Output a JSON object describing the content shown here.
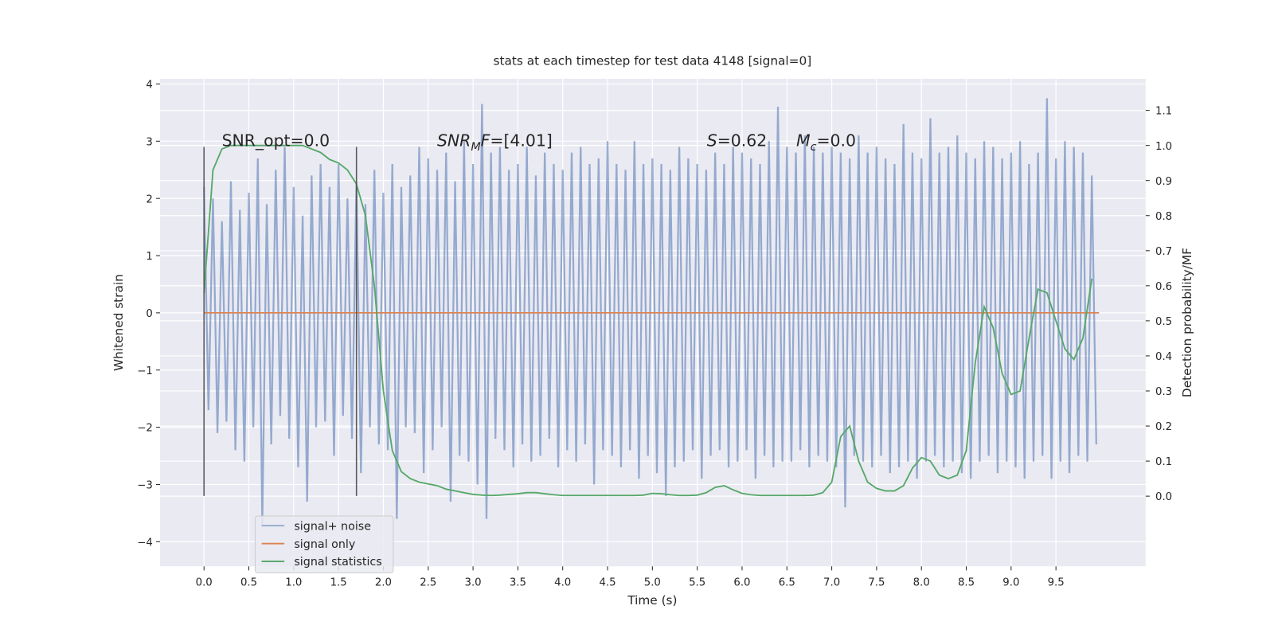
{
  "chart_data": {
    "type": "line",
    "title": "stats at each timestep for test data 4148 [signal=0]",
    "x_label": "Time (s)",
    "y_label": "Whitened strain",
    "y2_label": "Detection probability/MF",
    "xlim": [
      -0.49,
      10.5
    ],
    "ylim": [
      -4.43,
      4.09
    ],
    "y2lim": [
      -0.2,
      1.19
    ],
    "xticks": [
      {
        "value": 0,
        "label": "0.0"
      },
      {
        "value": 0.5,
        "label": "0.5"
      },
      {
        "value": 1,
        "label": "1.0"
      },
      {
        "value": 1.5,
        "label": "1.5"
      },
      {
        "value": 2,
        "label": "2.0"
      },
      {
        "value": 2.5,
        "label": "2.5"
      },
      {
        "value": 3,
        "label": "3.0"
      },
      {
        "value": 3.5,
        "label": "3.5"
      },
      {
        "value": 4,
        "label": "4.0"
      },
      {
        "value": 4.5,
        "label": "4.5"
      },
      {
        "value": 5,
        "label": "5.0"
      },
      {
        "value": 5.5,
        "label": "5.5"
      },
      {
        "value": 6,
        "label": "6.0"
      },
      {
        "value": 6.5,
        "label": "6.5"
      },
      {
        "value": 7,
        "label": "7.0"
      },
      {
        "value": 7.5,
        "label": "7.5"
      },
      {
        "value": 8,
        "label": "8.0"
      },
      {
        "value": 8.5,
        "label": "8.5"
      },
      {
        "value": 9,
        "label": "9.0"
      },
      {
        "value": 9.5,
        "label": "9.5"
      }
    ],
    "yticks": [
      {
        "value": -4,
        "label": "−4"
      },
      {
        "value": -3,
        "label": "−3"
      },
      {
        "value": -2,
        "label": "−2"
      },
      {
        "value": -1,
        "label": "−1"
      },
      0,
      1,
      2,
      3,
      4
    ],
    "y2ticks": [
      {
        "value": 0,
        "label": "0.0"
      },
      {
        "value": 0.1,
        "label": "0.1"
      },
      {
        "value": 0.2,
        "label": "0.2"
      },
      {
        "value": 0.3,
        "label": "0.3"
      },
      {
        "value": 0.4,
        "label": "0.4"
      },
      {
        "value": 0.5,
        "label": "0.5"
      },
      {
        "value": 0.6,
        "label": "0.6"
      },
      {
        "value": 0.7,
        "label": "0.7"
      },
      {
        "value": 0.8,
        "label": "0.8"
      },
      {
        "value": 0.9,
        "label": "0.9"
      },
      {
        "value": 1,
        "label": "1.0"
      },
      {
        "value": 1.1,
        "label": "1.1"
      }
    ],
    "grid": true,
    "legend": "lower left",
    "series": [
      {
        "name": "signal+ noise",
        "color": "#4c72b0",
        "x": [
          0,
          0.05,
          0.1,
          0.15,
          0.2,
          0.25,
          0.3,
          0.35,
          0.4,
          0.45,
          0.5,
          0.55,
          0.6,
          0.65,
          0.7,
          0.75,
          0.8,
          0.85,
          0.9,
          0.95,
          1,
          1.05,
          1.1,
          1.15,
          1.2,
          1.25,
          1.3,
          1.35,
          1.4,
          1.45,
          1.5,
          1.55,
          1.6,
          1.65,
          1.7,
          1.75,
          1.8,
          1.85,
          1.9,
          1.95,
          2,
          2.05,
          2.1,
          2.15,
          2.2,
          2.25,
          2.3,
          2.35,
          2.4,
          2.45,
          2.5,
          2.55,
          2.6,
          2.65,
          2.7,
          2.75,
          2.8,
          2.85,
          2.9,
          2.95,
          3,
          3.05,
          3.1,
          3.15,
          3.2,
          3.25,
          3.3,
          3.35,
          3.4,
          3.45,
          3.5,
          3.55,
          3.6,
          3.65,
          3.7,
          3.75,
          3.8,
          3.85,
          3.9,
          3.95,
          4,
          4.05,
          4.1,
          4.15,
          4.2,
          4.25,
          4.3,
          4.35,
          4.4,
          4.45,
          4.5,
          4.55,
          4.6,
          4.65,
          4.7,
          4.75,
          4.8,
          4.85,
          4.9,
          4.95,
          5,
          5.05,
          5.1,
          5.15,
          5.2,
          5.25,
          5.3,
          5.35,
          5.4,
          5.45,
          5.5,
          5.55,
          5.6,
          5.65,
          5.7,
          5.75,
          5.8,
          5.85,
          5.9,
          5.95,
          6,
          6.05,
          6.1,
          6.15,
          6.2,
          6.25,
          6.3,
          6.35,
          6.4,
          6.45,
          6.5,
          6.55,
          6.6,
          6.65,
          6.7,
          6.75,
          6.8,
          6.85,
          6.9,
          6.95,
          7,
          7.05,
          7.1,
          7.15,
          7.2,
          7.25,
          7.3,
          7.35,
          7.4,
          7.45,
          7.5,
          7.55,
          7.6,
          7.65,
          7.7,
          7.75,
          7.8,
          7.85,
          7.9,
          7.95,
          8,
          8.05,
          8.1,
          8.15,
          8.2,
          8.25,
          8.3,
          8.35,
          8.4,
          8.45,
          8.5,
          8.55,
          8.6,
          8.65,
          8.7,
          8.75,
          8.8,
          8.85,
          8.9,
          8.95,
          9,
          9.05,
          9.1,
          9.15,
          9.2,
          9.25,
          9.3,
          9.35,
          9.4,
          9.45,
          9.5,
          9.55,
          9.6,
          9.65,
          9.7,
          9.75,
          9.8,
          9.85,
          9.9,
          9.95
        ],
        "values": [
          2.2,
          -1.7,
          2.0,
          -2.1,
          1.6,
          -1.9,
          2.3,
          -2.4,
          1.8,
          -2.6,
          2.1,
          -2.0,
          2.7,
          -3.7,
          1.9,
          -2.3,
          2.5,
          -1.8,
          2.9,
          -2.2,
          2.2,
          -2.7,
          1.7,
          -3.3,
          2.4,
          -2.0,
          2.6,
          -1.9,
          2.2,
          -2.5,
          2.6,
          -1.8,
          2.0,
          -2.2,
          2.3,
          -2.8,
          1.9,
          -2.0,
          2.5,
          -2.3,
          2.1,
          -2.4,
          2.6,
          -3.6,
          2.2,
          -2.0,
          2.4,
          -2.1,
          2.9,
          -2.8,
          2.7,
          -2.4,
          2.5,
          -2.0,
          2.8,
          -3.3,
          2.3,
          -2.5,
          3.0,
          -2.6,
          2.6,
          -3.0,
          3.65,
          -3.6,
          2.8,
          -2.2,
          2.9,
          -2.4,
          2.5,
          -2.7,
          2.6,
          -2.3,
          2.9,
          -2.6,
          2.4,
          -2.5,
          2.8,
          -2.2,
          2.6,
          -2.7,
          2.5,
          -2.4,
          2.8,
          -2.6,
          2.9,
          -2.3,
          2.6,
          -3.0,
          2.7,
          -2.4,
          3.0,
          -2.5,
          2.6,
          -2.7,
          2.5,
          -2.4,
          3.0,
          -2.9,
          2.6,
          -2.5,
          2.7,
          -2.8,
          2.6,
          -3.2,
          2.5,
          -2.7,
          2.9,
          -2.6,
          2.7,
          -2.4,
          2.6,
          -2.9,
          2.5,
          -2.5,
          2.8,
          -2.4,
          2.6,
          -2.7,
          2.9,
          -2.6,
          2.8,
          -2.4,
          2.7,
          -2.9,
          2.6,
          -2.5,
          3.0,
          -2.7,
          3.6,
          -2.6,
          2.9,
          -2.6,
          2.8,
          -2.4,
          3.1,
          -2.7,
          2.9,
          -2.5,
          2.8,
          -2.6,
          2.9,
          -2.7,
          2.8,
          -3.4,
          2.7,
          -2.5,
          3.1,
          -2.6,
          2.8,
          -2.7,
          2.9,
          -2.5,
          2.7,
          -2.8,
          2.6,
          -2.7,
          3.3,
          -2.6,
          2.8,
          -2.9,
          2.7,
          -2.6,
          3.4,
          -2.5,
          2.8,
          -2.7,
          2.9,
          -2.6,
          3.1,
          -2.8,
          2.8,
          -2.9,
          2.7,
          -2.6,
          3.0,
          -2.5,
          2.9,
          -2.8,
          2.7,
          -2.6,
          2.8,
          -2.7,
          3.0,
          -2.9,
          2.6,
          -2.6,
          2.8,
          -2.5,
          3.75,
          -2.9,
          2.7,
          -2.6,
          3.0,
          -2.8,
          2.9,
          -2.5,
          2.8,
          -2.6,
          2.4,
          -2.3
        ]
      },
      {
        "name": "signal only",
        "color": "#dd8452",
        "x": [
          0,
          9.98
        ],
        "values": [
          0,
          0
        ]
      },
      {
        "name": "signal statistics",
        "color": "#55a868",
        "axis": "y2",
        "x": [
          0,
          0.1,
          0.2,
          0.3,
          0.4,
          0.5,
          0.6,
          0.7,
          0.8,
          0.9,
          1,
          1.1,
          1.2,
          1.3,
          1.4,
          1.5,
          1.6,
          1.7,
          1.8,
          1.9,
          2,
          2.1,
          2.2,
          2.3,
          2.4,
          2.5,
          2.6,
          2.7,
          2.8,
          2.9,
          3,
          3.1,
          3.2,
          3.3,
          3.4,
          3.5,
          3.6,
          3.7,
          3.8,
          3.9,
          4,
          4.1,
          4.2,
          4.3,
          4.4,
          4.5,
          4.6,
          4.7,
          4.8,
          4.9,
          5,
          5.1,
          5.2,
          5.3,
          5.4,
          5.5,
          5.6,
          5.7,
          5.8,
          5.9,
          6,
          6.1,
          6.2,
          6.3,
          6.4,
          6.5,
          6.6,
          6.7,
          6.8,
          6.9,
          7,
          7.1,
          7.2,
          7.3,
          7.4,
          7.5,
          7.6,
          7.7,
          7.8,
          7.9,
          8,
          8.1,
          8.2,
          8.3,
          8.4,
          8.5,
          8.6,
          8.7,
          8.8,
          8.9,
          9,
          9.1,
          9.2,
          9.3,
          9.4,
          9.5,
          9.6,
          9.7,
          9.8,
          9.9
        ],
        "values": [
          0.58,
          0.93,
          0.99,
          1.0,
          1.0,
          1.0,
          1.0,
          1.0,
          1.0,
          1.0,
          1.0,
          1.0,
          0.99,
          0.98,
          0.96,
          0.95,
          0.93,
          0.89,
          0.8,
          0.6,
          0.3,
          0.13,
          0.07,
          0.05,
          0.04,
          0.035,
          0.03,
          0.02,
          0.015,
          0.01,
          0.005,
          0.003,
          0.002,
          0.003,
          0.005,
          0.007,
          0.01,
          0.01,
          0.007,
          0.004,
          0.002,
          0.002,
          0.002,
          0.002,
          0.002,
          0.002,
          0.002,
          0.002,
          0.002,
          0.003,
          0.008,
          0.007,
          0.004,
          0.002,
          0.002,
          0.003,
          0.01,
          0.025,
          0.03,
          0.018,
          0.008,
          0.004,
          0.002,
          0.002,
          0.002,
          0.002,
          0.002,
          0.002,
          0.003,
          0.01,
          0.04,
          0.17,
          0.2,
          0.1,
          0.04,
          0.022,
          0.015,
          0.015,
          0.03,
          0.08,
          0.11,
          0.1,
          0.06,
          0.05,
          0.06,
          0.13,
          0.38,
          0.54,
          0.48,
          0.35,
          0.29,
          0.3,
          0.45,
          0.59,
          0.58,
          0.5,
          0.42,
          0.39,
          0.45,
          0.62
        ]
      }
    ],
    "vlines": {
      "x": [
        0,
        1.7
      ],
      "ymin": -3.2,
      "ymax": 2.9,
      "color": "#555555"
    },
    "annotations": [
      [
        {
          "text": "SNR_opt=0.0"
        }
      ],
      [
        {
          "text": "SNR",
          "italic": true
        },
        {
          "text": "M",
          "italic": true,
          "sub": true
        },
        {
          "text": "F",
          "italic": true
        },
        {
          "text": "=[4.01]"
        }
      ],
      [
        {
          "text": "S",
          "italic": true
        },
        {
          "text": "=0.62"
        }
      ],
      [
        {
          "text": "M",
          "italic": true
        },
        {
          "text": "c",
          "italic": true,
          "sub": true
        },
        {
          "text": "=0.0"
        }
      ]
    ]
  }
}
